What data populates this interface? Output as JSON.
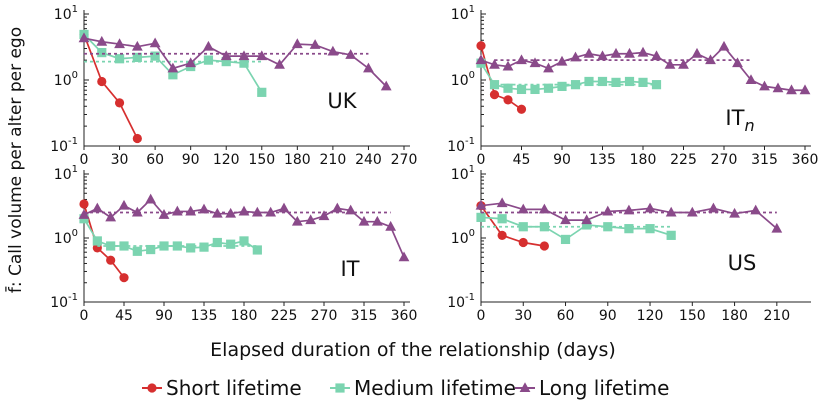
{
  "colors": {
    "short": "#d62f2f",
    "medium": "#7bd4b0",
    "long": "#8a4a8a"
  },
  "figure": {
    "ylabel": "f̄: Call volume per alter per ego",
    "xlabel": "Elapsed duration of the relationship (days)"
  },
  "legend": [
    {
      "key": "short",
      "label": "Short lifetime",
      "marker": "circle"
    },
    {
      "key": "medium",
      "label": "Medium lifetime",
      "marker": "square"
    },
    {
      "key": "long",
      "label": "Long lifetime",
      "marker": "triangle"
    }
  ],
  "chart_data": [
    {
      "type": "line",
      "panel": "UK",
      "title_main": "UK",
      "title_sub": "",
      "yscale": "log",
      "ylim": [
        0.1,
        10
      ],
      "yticks": [
        "10^-1",
        "10^0",
        "10^1"
      ],
      "xlim": [
        0,
        270
      ],
      "xticks": [
        "0",
        "30",
        "60",
        "90",
        "120",
        "150",
        "180",
        "210",
        "240",
        "270"
      ],
      "xtick_values": [
        0,
        30,
        60,
        90,
        120,
        150,
        180,
        210,
        240,
        270
      ],
      "series": [
        {
          "key": "short",
          "x": [
            0,
            15,
            30,
            45
          ],
          "y": [
            4.9,
            0.95,
            0.45,
            0.13
          ],
          "mean": null
        },
        {
          "key": "medium",
          "x": [
            0,
            15,
            30,
            45,
            60,
            75,
            90,
            105,
            120,
            135,
            150
          ],
          "y": [
            4.9,
            2.6,
            2.1,
            2.2,
            2.3,
            1.2,
            1.6,
            2.0,
            1.9,
            1.8,
            0.65
          ],
          "mean": 1.9,
          "mean_x": [
            0,
            150
          ]
        },
        {
          "key": "long",
          "x": [
            0,
            15,
            30,
            45,
            60,
            75,
            90,
            105,
            120,
            135,
            150,
            165,
            180,
            195,
            210,
            225,
            240
          ],
          "y": [
            4.3,
            3.8,
            3.5,
            3.2,
            3.6,
            1.5,
            1.8,
            3.2,
            2.3,
            2.3,
            2.3,
            1.7,
            3.5,
            3.4,
            2.7,
            2.4,
            1.5
          ],
          "y_tail": [
            0.8
          ],
          "x_tail": [
            255
          ],
          "mean": 2.5,
          "mean_x": [
            0,
            240
          ]
        }
      ]
    },
    {
      "type": "line",
      "panel": "ITn",
      "title_main": "IT",
      "title_sub": "n",
      "yscale": "log",
      "ylim": [
        0.1,
        10
      ],
      "yticks": [
        "10^-1",
        "10^0",
        "10^1"
      ],
      "xlim": [
        0,
        360
      ],
      "xticks": [
        "0",
        "45",
        "90",
        "135",
        "180",
        "225",
        "270",
        "315",
        "360"
      ],
      "xtick_values": [
        0,
        45,
        90,
        135,
        180,
        225,
        270,
        315,
        360
      ],
      "series": [
        {
          "key": "short",
          "x": [
            0,
            15,
            30,
            45
          ],
          "y": [
            3.3,
            0.6,
            0.5,
            0.36
          ],
          "mean": null
        },
        {
          "key": "medium",
          "x": [
            0,
            15,
            30,
            45,
            60,
            75,
            90,
            105,
            120,
            135,
            150,
            165,
            180,
            195
          ],
          "y": [
            1.8,
            0.85,
            0.75,
            0.72,
            0.72,
            0.75,
            0.8,
            0.85,
            0.95,
            0.95,
            0.92,
            0.95,
            0.92,
            0.85
          ],
          "mean": 0.85,
          "mean_x": [
            15,
            195
          ]
        },
        {
          "key": "long",
          "x": [
            0,
            15,
            30,
            45,
            60,
            75,
            90,
            105,
            120,
            135,
            150,
            165,
            180,
            195,
            210,
            225,
            240,
            255,
            270,
            285,
            300,
            315,
            330,
            345,
            360
          ],
          "y": [
            2.0,
            1.7,
            1.6,
            2.0,
            1.8,
            1.5,
            1.9,
            2.2,
            2.5,
            2.3,
            2.5,
            2.5,
            2.6,
            2.3,
            1.7,
            1.7,
            2.5,
            2.0,
            3.2,
            1.8,
            1.0,
            0.8,
            0.75,
            0.7,
            0.7
          ],
          "mean": 2.0,
          "mean_x": [
            15,
            300
          ]
        }
      ]
    },
    {
      "type": "line",
      "panel": "IT",
      "title_main": "IT",
      "title_sub": "",
      "yscale": "log",
      "ylim": [
        0.1,
        10
      ],
      "yticks": [
        "10^-1",
        "10^0",
        "10^1"
      ],
      "xlim": [
        0,
        360
      ],
      "xticks": [
        "0",
        "45",
        "90",
        "135",
        "180",
        "225",
        "270",
        "315",
        "360"
      ],
      "xtick_values": [
        0,
        45,
        90,
        135,
        180,
        225,
        270,
        315,
        360
      ],
      "series": [
        {
          "key": "short",
          "x": [
            0,
            15,
            30,
            45
          ],
          "y": [
            3.4,
            0.7,
            0.45,
            0.24
          ],
          "mean": null
        },
        {
          "key": "medium",
          "x": [
            0,
            15,
            30,
            45,
            60,
            75,
            90,
            105,
            120,
            135,
            150,
            165,
            180,
            195
          ],
          "y": [
            2.0,
            0.9,
            0.75,
            0.75,
            0.62,
            0.66,
            0.75,
            0.75,
            0.7,
            0.72,
            0.85,
            0.8,
            0.9,
            0.65
          ],
          "mean": 0.75,
          "mean_x": [
            15,
            195
          ]
        },
        {
          "key": "long",
          "x": [
            0,
            15,
            30,
            45,
            60,
            75,
            90,
            105,
            120,
            135,
            150,
            165,
            180,
            195,
            210,
            225,
            240,
            255,
            270,
            285,
            300,
            315,
            330,
            345,
            360
          ],
          "y": [
            2.3,
            2.9,
            2.1,
            3.2,
            2.5,
            4.0,
            2.3,
            2.6,
            2.6,
            2.8,
            2.4,
            2.4,
            2.6,
            2.5,
            2.5,
            2.9,
            1.8,
            1.9,
            2.2,
            2.9,
            2.7,
            1.8,
            1.8,
            1.5,
            0.5
          ],
          "mean": 2.5,
          "mean_x": [
            0,
            345
          ]
        }
      ]
    },
    {
      "type": "line",
      "panel": "US",
      "title_main": "US",
      "title_sub": "",
      "yscale": "log",
      "ylim": [
        0.1,
        10
      ],
      "yticks": [
        "10^-1",
        "10^0",
        "10^1"
      ],
      "xlim": [
        0,
        230
      ],
      "xticks": [
        "0",
        "30",
        "60",
        "90",
        "120",
        "150",
        "180",
        "210"
      ],
      "xtick_values": [
        0,
        30,
        60,
        90,
        120,
        150,
        180,
        210
      ],
      "series": [
        {
          "key": "short",
          "x": [
            0,
            15,
            30,
            45
          ],
          "y": [
            3.2,
            1.1,
            0.85,
            0.75
          ],
          "mean": null
        },
        {
          "key": "medium",
          "x": [
            0,
            15,
            30,
            45,
            60,
            75,
            90,
            105,
            120,
            135
          ],
          "y": [
            2.1,
            2.0,
            1.5,
            1.5,
            0.95,
            1.6,
            1.5,
            1.4,
            1.4,
            1.1
          ],
          "mean": 1.5,
          "mean_x": [
            0,
            135
          ]
        },
        {
          "key": "long",
          "x": [
            0,
            15,
            30,
            45,
            60,
            75,
            90,
            105,
            120,
            135,
            150,
            165,
            180,
            195,
            210
          ],
          "y": [
            3.2,
            3.5,
            2.8,
            2.8,
            1.9,
            1.9,
            2.6,
            2.7,
            2.9,
            2.5,
            2.5,
            2.9,
            2.4,
            2.7,
            1.4
          ],
          "mean": 2.5,
          "mean_x": [
            0,
            210
          ]
        }
      ]
    }
  ]
}
